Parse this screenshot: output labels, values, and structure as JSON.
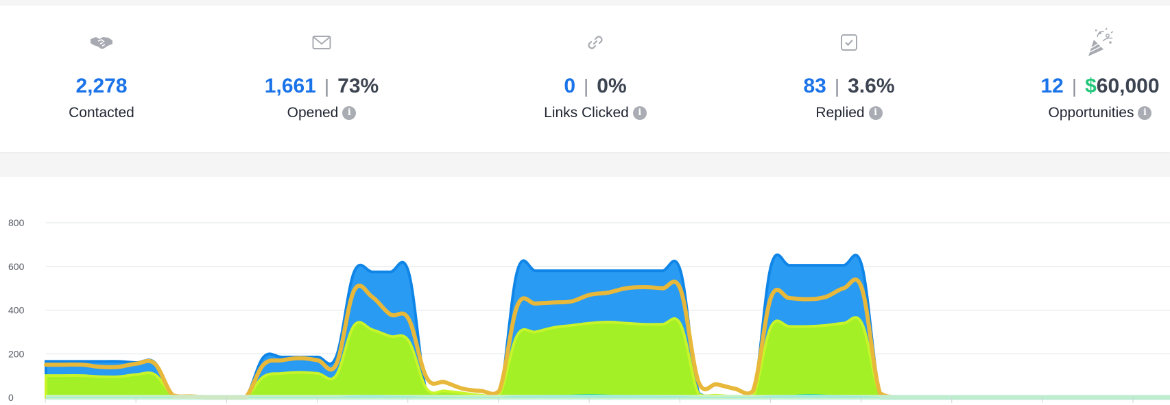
{
  "stats": [
    {
      "icon": "handshake-icon",
      "primary": "2,278",
      "secondary": "",
      "currency_sign": "",
      "label": "Contacted",
      "has_info": false
    },
    {
      "icon": "envelope-icon",
      "primary": "1,661",
      "secondary": "73%",
      "currency_sign": "",
      "label": "Opened",
      "has_info": true
    },
    {
      "icon": "link-icon",
      "primary": "0",
      "secondary": "0%",
      "currency_sign": "",
      "label": "Links Clicked",
      "has_info": true
    },
    {
      "icon": "checkbox-icon",
      "primary": "83",
      "secondary": "3.6%",
      "currency_sign": "",
      "label": "Replied",
      "has_info": true
    },
    {
      "icon": "party-popper-icon",
      "primary": "12",
      "secondary": "60,000",
      "currency_sign": "$",
      "label": "Opportunities",
      "has_info": true
    }
  ],
  "info_glyph": "i",
  "separator": "|",
  "colors": {
    "accent_blue": "#1a73e8",
    "money_green": "#22c77a",
    "series_sent": "#1e96f0",
    "series_contacted_line": "#e8b83a",
    "series_opened": "#a3f026",
    "series_low": "#18d6a4"
  },
  "chart_data": {
    "type": "area",
    "y_ticks": [
      "800",
      "600",
      "400",
      "200",
      "0"
    ],
    "ylim": [
      0,
      800
    ],
    "x_index_range": [
      0,
      62
    ],
    "grid": true,
    "legend": "none",
    "series": [
      {
        "id": "blue",
        "color": "#1e96f0",
        "values": [
          165,
          165,
          165,
          165,
          165,
          160,
          160,
          10,
          0,
          0,
          0,
          0,
          185,
          185,
          185,
          185,
          185,
          575,
          575,
          575,
          575,
          20,
          0,
          0,
          0,
          0,
          580,
          580,
          580,
          580,
          580,
          580,
          580,
          580,
          580,
          580,
          20,
          0,
          0,
          0,
          605,
          605,
          605,
          605,
          605,
          605,
          20,
          0,
          0,
          0,
          0,
          0,
          0,
          0,
          0,
          0,
          0,
          0,
          0,
          0,
          0,
          0,
          0
        ]
      },
      {
        "id": "yellow",
        "color": "#e8b83a",
        "values": [
          150,
          150,
          150,
          140,
          140,
          155,
          155,
          10,
          5,
          0,
          0,
          0,
          150,
          170,
          180,
          170,
          150,
          490,
          460,
          380,
          360,
          90,
          70,
          40,
          30,
          30,
          420,
          430,
          435,
          440,
          470,
          480,
          500,
          505,
          500,
          495,
          70,
          60,
          40,
          30,
          460,
          455,
          450,
          460,
          500,
          500,
          20,
          0,
          0,
          0,
          0,
          0,
          0,
          0,
          0,
          0,
          0,
          0,
          0,
          0,
          0,
          0,
          0
        ]
      },
      {
        "id": "green",
        "color": "#a3f026",
        "values": [
          100,
          100,
          100,
          95,
          95,
          105,
          105,
          10,
          0,
          0,
          0,
          0,
          95,
          110,
          115,
          110,
          100,
          330,
          310,
          280,
          260,
          40,
          30,
          20,
          10,
          10,
          285,
          300,
          320,
          330,
          340,
          345,
          340,
          335,
          335,
          335,
          15,
          10,
          5,
          5,
          325,
          325,
          325,
          330,
          340,
          340,
          15,
          0,
          0,
          0,
          0,
          0,
          0,
          0,
          0,
          0,
          0,
          0,
          0,
          0,
          0,
          0,
          0
        ]
      },
      {
        "id": "teal",
        "color": "#18d6a4",
        "values": [
          0,
          0,
          0,
          0,
          0,
          0,
          0,
          0,
          0,
          0,
          0,
          0,
          0,
          0,
          0,
          0,
          0,
          5,
          8,
          5,
          3,
          0,
          0,
          0,
          0,
          0,
          5,
          6,
          8,
          10,
          12,
          10,
          8,
          6,
          5,
          4,
          0,
          0,
          0,
          0,
          5,
          8,
          12,
          10,
          6,
          4,
          0,
          0,
          0,
          0,
          0,
          0,
          0,
          0,
          0,
          0,
          0,
          0,
          0,
          0,
          0,
          0,
          0
        ]
      }
    ]
  }
}
